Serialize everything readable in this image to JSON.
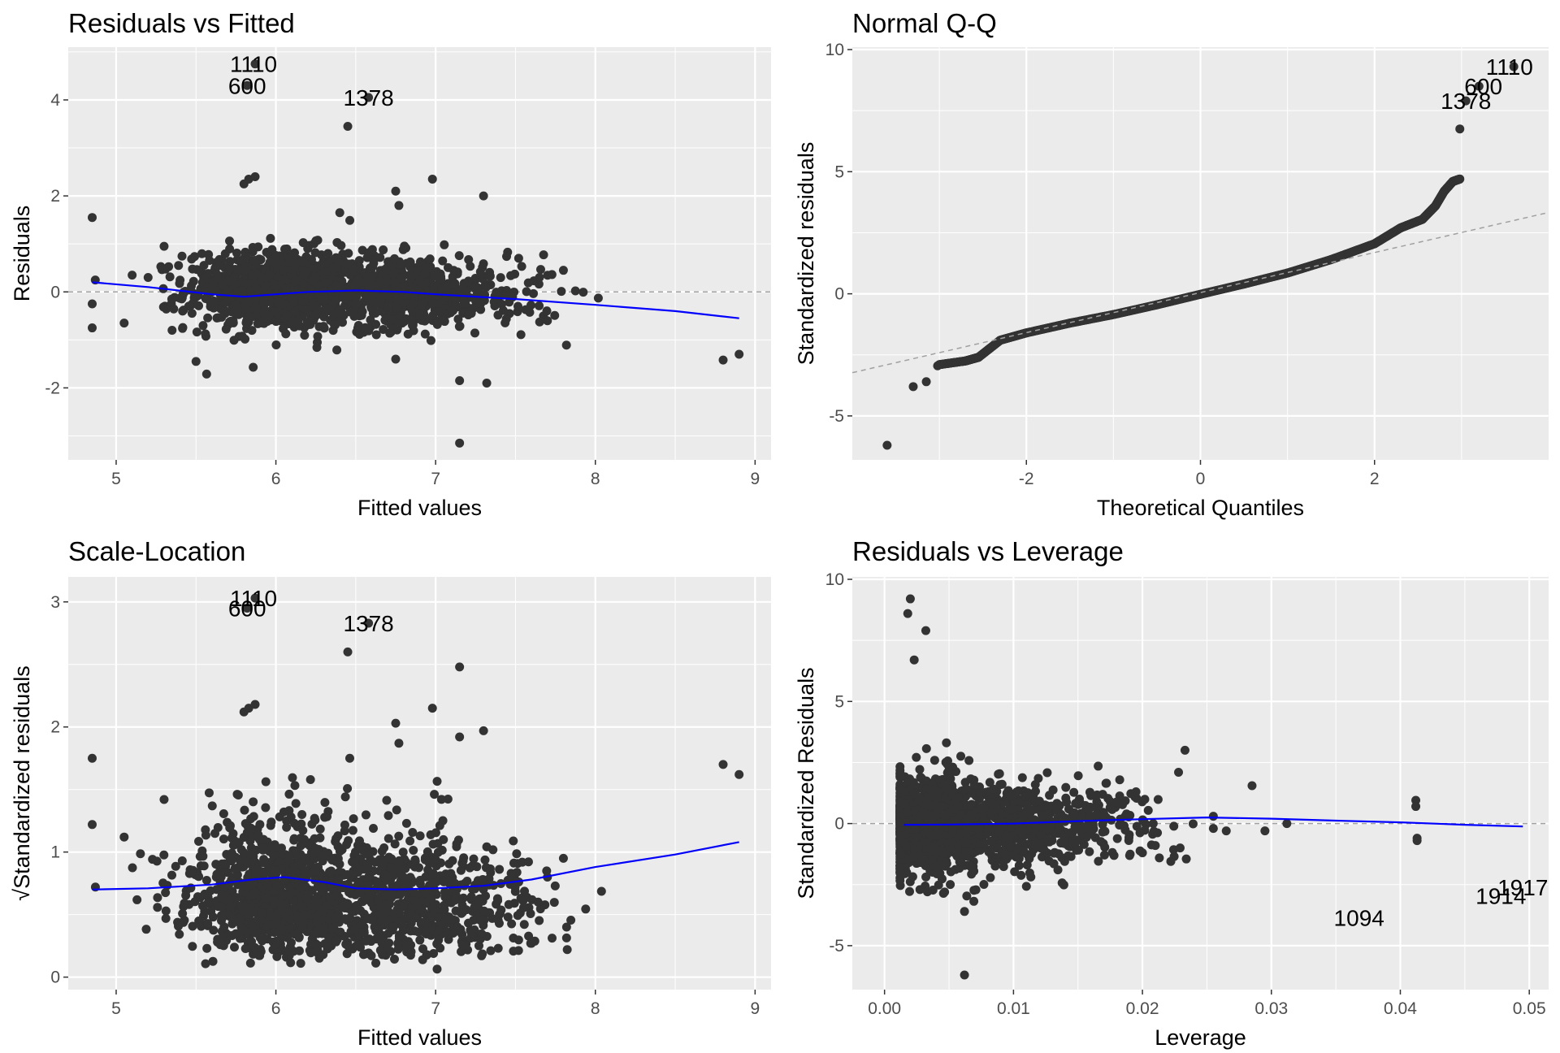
{
  "colors": {
    "panel": "#ebebeb",
    "grid": "#ffffff",
    "point": "#333333",
    "smooth": "#0000ff",
    "refline": "#a0a0a0"
  },
  "chart_data": [
    {
      "type": "scatter",
      "title": "Residuals vs Fitted",
      "xlabel": "Fitted values",
      "ylabel": "Residuals",
      "xlim": [
        4.7,
        9.1
      ],
      "ylim": [
        -3.5,
        5.1
      ],
      "xticks": [
        5,
        6,
        7,
        8,
        9
      ],
      "yticks": [
        -2,
        0,
        2,
        4
      ],
      "xtick_labels": [
        "5",
        "6",
        "7",
        "8",
        "9"
      ],
      "ytick_labels": [
        "-2",
        "0",
        "2",
        "4"
      ],
      "grid": true,
      "hline": 0,
      "cloud": [
        {
          "cx": 6.0,
          "cy": 0.05,
          "sx": 0.28,
          "sy": 0.42,
          "n": 900
        },
        {
          "cx": 6.75,
          "cy": 0.0,
          "sx": 0.28,
          "sy": 0.38,
          "n": 550
        },
        {
          "cx": 7.3,
          "cy": -0.1,
          "sx": 0.25,
          "sy": 0.35,
          "n": 120
        }
      ],
      "points": [
        {
          "x": 4.85,
          "y": 1.55
        },
        {
          "x": 4.85,
          "y": -0.25
        },
        {
          "x": 4.85,
          "y": -0.75
        },
        {
          "x": 5.05,
          "y": -0.65
        },
        {
          "x": 5.1,
          "y": 0.35
        },
        {
          "x": 5.2,
          "y": 0.3
        },
        {
          "x": 5.3,
          "y": 0.95
        },
        {
          "x": 5.35,
          "y": -0.8
        },
        {
          "x": 5.5,
          "y": -1.45
        },
        {
          "x": 5.8,
          "y": 2.25
        },
        {
          "x": 5.83,
          "y": 2.35
        },
        {
          "x": 5.87,
          "y": 2.4
        },
        {
          "x": 6.45,
          "y": 3.45
        },
        {
          "x": 6.98,
          "y": 2.35
        },
        {
          "x": 6.75,
          "y": 2.1
        },
        {
          "x": 6.4,
          "y": 1.65
        },
        {
          "x": 7.3,
          "y": 2.0
        },
        {
          "x": 6.77,
          "y": 1.8
        },
        {
          "x": 7.15,
          "y": -1.85
        },
        {
          "x": 7.15,
          "y": -3.15
        },
        {
          "x": 7.32,
          "y": -1.9
        },
        {
          "x": 6.75,
          "y": -1.4
        },
        {
          "x": 7.7,
          "y": -0.6
        },
        {
          "x": 7.8,
          "y": 0.45
        },
        {
          "x": 7.65,
          "y": 0.3
        },
        {
          "x": 7.52,
          "y": 0.7
        },
        {
          "x": 8.8,
          "y": -1.42
        },
        {
          "x": 8.9,
          "y": -1.3
        },
        {
          "x": 5.82,
          "y": 4.3
        },
        {
          "x": 5.87,
          "y": 4.75
        },
        {
          "x": 6.58,
          "y": 4.05
        }
      ],
      "smooth": [
        [
          4.85,
          0.2
        ],
        [
          5.2,
          0.1
        ],
        [
          5.6,
          -0.05
        ],
        [
          5.8,
          -0.1
        ],
        [
          6.0,
          -0.05
        ],
        [
          6.2,
          0.0
        ],
        [
          6.5,
          0.03
        ],
        [
          6.8,
          0.0
        ],
        [
          7.0,
          -0.05
        ],
        [
          7.5,
          -0.15
        ],
        [
          8.0,
          -0.27
        ],
        [
          8.5,
          -0.4
        ],
        [
          8.9,
          -0.55
        ]
      ],
      "labels": [
        {
          "text": "1110",
          "x": 5.86,
          "y": 4.75
        },
        {
          "text": "600",
          "x": 5.82,
          "y": 4.3
        },
        {
          "text": "1378",
          "x": 6.58,
          "y": 4.05
        }
      ]
    },
    {
      "type": "scatter",
      "title": "Normal Q-Q",
      "xlabel": "Theoretical Quantiles",
      "ylabel": "Standardized residuals",
      "xlim": [
        -4.0,
        4.0
      ],
      "ylim": [
        -6.8,
        10.1
      ],
      "xticks": [
        -2,
        0,
        2
      ],
      "yticks": [
        -5,
        0,
        5,
        10
      ],
      "xtick_labels": [
        "-2",
        "0",
        "2"
      ],
      "ytick_labels": [
        "-5",
        "0",
        "5",
        "10"
      ],
      "grid": true,
      "refline": {
        "slope": 0.82,
        "intercept": 0.05
      },
      "qq_curve": [
        [
          -3.0,
          -2.9
        ],
        [
          -2.7,
          -2.75
        ],
        [
          -2.55,
          -2.6
        ],
        [
          -2.3,
          -1.9
        ],
        [
          -2.0,
          -1.6
        ],
        [
          -1.5,
          -1.2
        ],
        [
          -1.0,
          -0.85
        ],
        [
          -0.5,
          -0.45
        ],
        [
          0.0,
          -0.02
        ],
        [
          0.5,
          0.4
        ],
        [
          1.0,
          0.85
        ],
        [
          1.5,
          1.4
        ],
        [
          2.0,
          2.05
        ],
        [
          2.3,
          2.7
        ],
        [
          2.55,
          3.05
        ],
        [
          2.7,
          3.6
        ],
        [
          2.8,
          4.2
        ],
        [
          2.9,
          4.6
        ],
        [
          2.98,
          4.7
        ]
      ],
      "points": [
        {
          "x": -3.6,
          "y": -6.2
        },
        {
          "x": -3.3,
          "y": -3.8
        },
        {
          "x": -3.15,
          "y": -3.6
        },
        {
          "x": -3.02,
          "y": -2.95
        },
        {
          "x": 2.98,
          "y": 6.75
        },
        {
          "x": 3.05,
          "y": 7.9
        },
        {
          "x": 3.2,
          "y": 8.5
        },
        {
          "x": 3.6,
          "y": 9.3
        }
      ],
      "labels": [
        {
          "text": "1110",
          "x": 3.55,
          "y": 9.3
        },
        {
          "text": "600",
          "x": 3.25,
          "y": 8.5
        },
        {
          "text": "1378",
          "x": 3.05,
          "y": 7.9
        }
      ]
    },
    {
      "type": "scatter",
      "title": "Scale-Location",
      "xlabel": "Fitted values",
      "ylabel": "√Standardized residuals",
      "xlim": [
        4.7,
        9.1
      ],
      "ylim": [
        -0.1,
        3.2
      ],
      "xticks": [
        5,
        6,
        7,
        8,
        9
      ],
      "yticks": [
        0,
        1,
        2,
        3
      ],
      "xtick_labels": [
        "5",
        "6",
        "7",
        "8",
        "9"
      ],
      "ytick_labels": [
        "0",
        "1",
        "2",
        "3"
      ],
      "grid": true,
      "cloud": [
        {
          "cx": 6.0,
          "cy": 0.8,
          "sx": 0.28,
          "sy": 0.38,
          "n": 900
        },
        {
          "cx": 6.75,
          "cy": 0.72,
          "sx": 0.28,
          "sy": 0.34,
          "n": 550
        },
        {
          "cx": 7.3,
          "cy": 0.72,
          "sx": 0.25,
          "sy": 0.32,
          "n": 120
        }
      ],
      "points": [
        {
          "x": 4.85,
          "y": 1.75
        },
        {
          "x": 4.85,
          "y": 1.22
        },
        {
          "x": 4.87,
          "y": 0.72
        },
        {
          "x": 5.05,
          "y": 1.12
        },
        {
          "x": 5.3,
          "y": 1.42
        },
        {
          "x": 5.8,
          "y": 2.12
        },
        {
          "x": 5.83,
          "y": 2.15
        },
        {
          "x": 5.87,
          "y": 2.18
        },
        {
          "x": 6.45,
          "y": 2.6
        },
        {
          "x": 7.15,
          "y": 2.48
        },
        {
          "x": 6.98,
          "y": 2.15
        },
        {
          "x": 6.75,
          "y": 2.03
        },
        {
          "x": 7.3,
          "y": 1.97
        },
        {
          "x": 6.77,
          "y": 1.87
        },
        {
          "x": 7.15,
          "y": 1.92
        },
        {
          "x": 7.8,
          "y": 0.95
        },
        {
          "x": 7.7,
          "y": 0.8
        },
        {
          "x": 7.6,
          "y": 0.27
        },
        {
          "x": 7.82,
          "y": 0.4
        },
        {
          "x": 8.8,
          "y": 1.7
        },
        {
          "x": 8.9,
          "y": 1.62
        },
        {
          "x": 5.82,
          "y": 2.95
        },
        {
          "x": 5.87,
          "y": 3.03
        },
        {
          "x": 6.58,
          "y": 2.83
        }
      ],
      "smooth": [
        [
          4.85,
          0.7
        ],
        [
          5.2,
          0.71
        ],
        [
          5.6,
          0.74
        ],
        [
          5.85,
          0.78
        ],
        [
          6.05,
          0.8
        ],
        [
          6.3,
          0.76
        ],
        [
          6.5,
          0.71
        ],
        [
          6.75,
          0.7
        ],
        [
          7.0,
          0.71
        ],
        [
          7.3,
          0.73
        ],
        [
          7.6,
          0.78
        ],
        [
          8.0,
          0.88
        ],
        [
          8.5,
          0.98
        ],
        [
          8.9,
          1.08
        ]
      ],
      "labels": [
        {
          "text": "1110",
          "x": 5.86,
          "y": 3.03
        },
        {
          "text": "600",
          "x": 5.82,
          "y": 2.95
        },
        {
          "text": "1378",
          "x": 6.58,
          "y": 2.83
        }
      ]
    },
    {
      "type": "scatter",
      "title": "Residuals vs Leverage",
      "xlabel": "Leverage",
      "ylabel": "Standardized Residuals",
      "xlim": [
        -0.0025,
        0.0515
      ],
      "ylim": [
        -6.8,
        10.1
      ],
      "xticks": [
        0.0,
        0.01,
        0.02,
        0.03,
        0.04,
        0.05
      ],
      "yticks": [
        -5,
        0,
        5,
        10
      ],
      "xtick_labels": [
        "0.00",
        "0.01",
        "0.02",
        "0.03",
        "0.04",
        "0.05"
      ],
      "ytick_labels": [
        "-5",
        "0",
        "5",
        "10"
      ],
      "grid": true,
      "hline": 0,
      "cloud": [
        {
          "cx": 0.0035,
          "cy": 0.0,
          "sx": 0.0018,
          "sy": 1.0,
          "n": 900
        },
        {
          "cx": 0.009,
          "cy": 0.0,
          "sx": 0.003,
          "sy": 0.9,
          "n": 500
        },
        {
          "cx": 0.016,
          "cy": 0.0,
          "sx": 0.003,
          "sy": 0.8,
          "n": 150
        }
      ],
      "points": [
        {
          "x": 0.0018,
          "y": 8.6
        },
        {
          "x": 0.002,
          "y": 9.2
        },
        {
          "x": 0.0032,
          "y": 7.9
        },
        {
          "x": 0.0023,
          "y": 6.7
        },
        {
          "x": 0.0062,
          "y": -6.2
        },
        {
          "x": 0.0062,
          "y": -3.6
        },
        {
          "x": 0.0233,
          "y": 3.0
        },
        {
          "x": 0.0285,
          "y": 1.55
        },
        {
          "x": 0.0228,
          "y": 2.1
        },
        {
          "x": 0.0255,
          "y": 0.3
        },
        {
          "x": 0.0255,
          "y": -0.2
        },
        {
          "x": 0.0265,
          "y": -0.3
        },
        {
          "x": 0.0295,
          "y": -0.3
        },
        {
          "x": 0.0312,
          "y": 0.0
        },
        {
          "x": 0.0412,
          "y": 0.95
        },
        {
          "x": 0.0412,
          "y": 0.7
        },
        {
          "x": 0.0413,
          "y": -0.6
        },
        {
          "x": 0.0413,
          "y": -0.7
        },
        {
          "x": 0.02,
          "y": -1.2
        },
        {
          "x": 0.021,
          "y": -0.9
        },
        {
          "x": 0.0234,
          "y": -1.45
        },
        {
          "x": 0.0222,
          "y": -1.55
        },
        {
          "x": 0.0195,
          "y": 1.3
        },
        {
          "x": 0.0175,
          "y": 0.9
        }
      ],
      "smooth": [
        [
          0.0015,
          -0.05
        ],
        [
          0.005,
          -0.04
        ],
        [
          0.01,
          0.0
        ],
        [
          0.015,
          0.1
        ],
        [
          0.02,
          0.18
        ],
        [
          0.025,
          0.25
        ],
        [
          0.03,
          0.2
        ],
        [
          0.035,
          0.12
        ],
        [
          0.04,
          0.05
        ],
        [
          0.045,
          -0.05
        ],
        [
          0.0495,
          -0.12
        ]
      ],
      "labels": [
        {
          "text": "1094",
          "x": 0.0368,
          "y": -3.85
        },
        {
          "text": "1914",
          "x": 0.0478,
          "y": -2.95
        },
        {
          "text": "1917",
          "x": 0.0495,
          "y": -2.6
        }
      ]
    }
  ]
}
